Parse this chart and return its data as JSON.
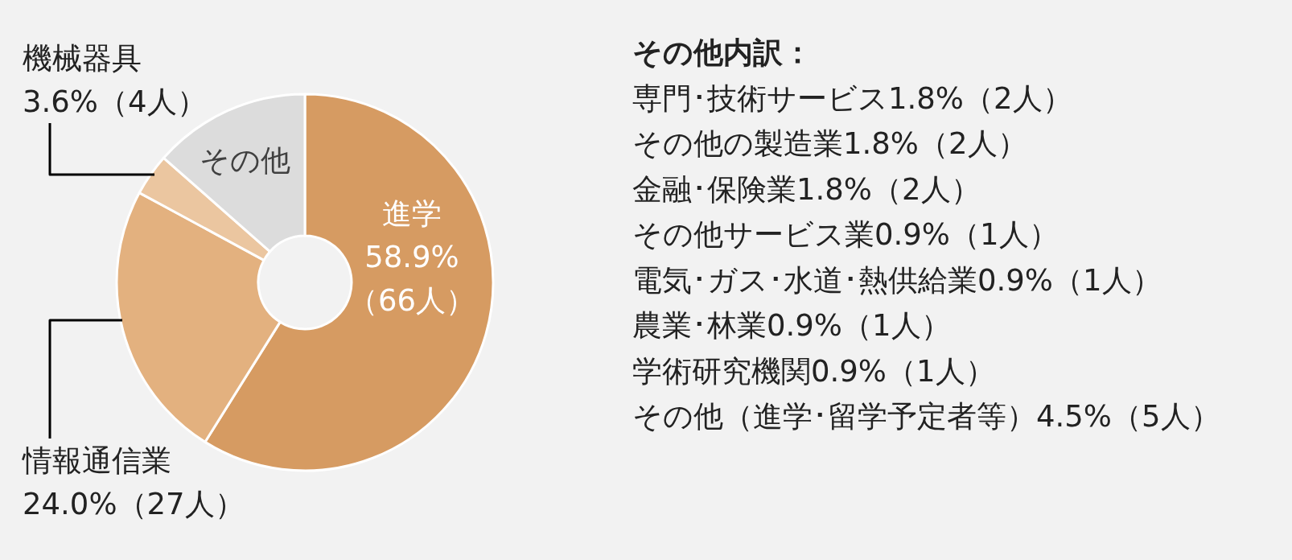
{
  "chart_data": {
    "type": "donut",
    "categories": [
      "進学",
      "情報通信業",
      "機械器具",
      "その他"
    ],
    "values": [
      58.9,
      24.0,
      3.6,
      13.5
    ],
    "colors": [
      "#d69b62",
      "#e3b17f",
      "#ebc6a0",
      "#dcdcdc"
    ],
    "value_labels": [
      "58.9%（66人）",
      "24.0%（27人）",
      "3.6%（4人）",
      null
    ],
    "annotations": [
      "その他内訳：",
      "専門･技術サービス1.8%（2人）",
      "その他の製造業1.8%（2人）",
      "金融･保険業1.8%（2人）",
      "その他サービス業0.9%（1人）",
      "電気･ガス･水道･熱供給業0.9%（1人）",
      "農業･林業0.9%（1人）",
      "学術研究機関0.9%（1人）",
      "その他（進学･留学予定者等）4.5%（5人）"
    ]
  }
}
